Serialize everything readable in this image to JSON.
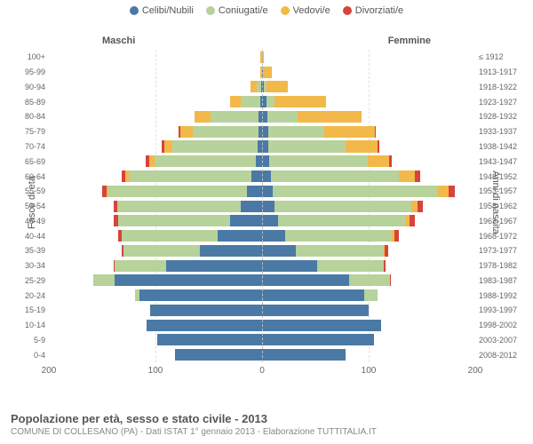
{
  "legend": [
    {
      "label": "Celibi/Nubili",
      "color": "#4a79a6"
    },
    {
      "label": "Coniugati/e",
      "color": "#b7d29a"
    },
    {
      "label": "Vedovi/e",
      "color": "#f3b84a"
    },
    {
      "label": "Divorziati/e",
      "color": "#d6443c"
    }
  ],
  "headers": {
    "male": "Maschi",
    "female": "Femmine"
  },
  "axis_labels": {
    "left": "Fasce di età",
    "right": "Anni di nascita"
  },
  "colors": {
    "single": "#4a79a6",
    "married": "#b7d29a",
    "widowed": "#f3b84a",
    "divorced": "#d6443c",
    "grid": "#e0e0e0",
    "centerline": "#bbbbbb",
    "background": "#ffffff"
  },
  "chart": {
    "type": "population-pyramid",
    "xmax": 200
  },
  "xticks": [
    200,
    100,
    0,
    100,
    200
  ],
  "rows": [
    {
      "age": "100+",
      "birth": "≤ 1912",
      "m": {
        "s": 0,
        "c": 0,
        "w": 2,
        "d": 0
      },
      "f": {
        "s": 0,
        "c": 0,
        "w": 2,
        "d": 0
      }
    },
    {
      "age": "95-99",
      "birth": "1913-1917",
      "m": {
        "s": 0,
        "c": 0,
        "w": 2,
        "d": 0
      },
      "f": {
        "s": 1,
        "c": 0,
        "w": 8,
        "d": 0
      }
    },
    {
      "age": "90-94",
      "birth": "1918-1922",
      "m": {
        "s": 1,
        "c": 4,
        "w": 6,
        "d": 0
      },
      "f": {
        "s": 2,
        "c": 2,
        "w": 20,
        "d": 0
      }
    },
    {
      "age": "85-89",
      "birth": "1923-1927",
      "m": {
        "s": 2,
        "c": 18,
        "w": 10,
        "d": 0
      },
      "f": {
        "s": 4,
        "c": 8,
        "w": 48,
        "d": 0
      }
    },
    {
      "age": "80-84",
      "birth": "1928-1932",
      "m": {
        "s": 3,
        "c": 45,
        "w": 15,
        "d": 0
      },
      "f": {
        "s": 5,
        "c": 28,
        "w": 60,
        "d": 0
      }
    },
    {
      "age": "75-79",
      "birth": "1933-1937",
      "m": {
        "s": 3,
        "c": 62,
        "w": 12,
        "d": 1
      },
      "f": {
        "s": 6,
        "c": 52,
        "w": 48,
        "d": 1
      }
    },
    {
      "age": "70-74",
      "birth": "1938-1942",
      "m": {
        "s": 4,
        "c": 80,
        "w": 8,
        "d": 2
      },
      "f": {
        "s": 6,
        "c": 72,
        "w": 30,
        "d": 2
      }
    },
    {
      "age": "65-69",
      "birth": "1943-1947",
      "m": {
        "s": 6,
        "c": 95,
        "w": 5,
        "d": 3
      },
      "f": {
        "s": 7,
        "c": 92,
        "w": 20,
        "d": 3
      }
    },
    {
      "age": "60-64",
      "birth": "1948-1952",
      "m": {
        "s": 10,
        "c": 115,
        "w": 3,
        "d": 4
      },
      "f": {
        "s": 8,
        "c": 120,
        "w": 15,
        "d": 5
      }
    },
    {
      "age": "55-59",
      "birth": "1953-1957",
      "m": {
        "s": 14,
        "c": 130,
        "w": 2,
        "d": 4
      },
      "f": {
        "s": 10,
        "c": 155,
        "w": 10,
        "d": 6
      }
    },
    {
      "age": "50-54",
      "birth": "1958-1962",
      "m": {
        "s": 20,
        "c": 115,
        "w": 1,
        "d": 3
      },
      "f": {
        "s": 12,
        "c": 128,
        "w": 6,
        "d": 5
      }
    },
    {
      "age": "45-49",
      "birth": "1963-1967",
      "m": {
        "s": 30,
        "c": 105,
        "w": 0,
        "d": 4
      },
      "f": {
        "s": 15,
        "c": 120,
        "w": 3,
        "d": 5
      }
    },
    {
      "age": "40-44",
      "birth": "1968-1972",
      "m": {
        "s": 42,
        "c": 90,
        "w": 0,
        "d": 3
      },
      "f": {
        "s": 22,
        "c": 100,
        "w": 2,
        "d": 4
      }
    },
    {
      "age": "35-39",
      "birth": "1973-1977",
      "m": {
        "s": 58,
        "c": 72,
        "w": 0,
        "d": 2
      },
      "f": {
        "s": 32,
        "c": 82,
        "w": 1,
        "d": 3
      }
    },
    {
      "age": "30-34",
      "birth": "1978-1982",
      "m": {
        "s": 90,
        "c": 48,
        "w": 0,
        "d": 1
      },
      "f": {
        "s": 52,
        "c": 62,
        "w": 0,
        "d": 2
      }
    },
    {
      "age": "25-29",
      "birth": "1983-1987",
      "m": {
        "s": 138,
        "c": 20,
        "w": 0,
        "d": 0
      },
      "f": {
        "s": 82,
        "c": 38,
        "w": 0,
        "d": 1
      }
    },
    {
      "age": "20-24",
      "birth": "1988-1992",
      "m": {
        "s": 115,
        "c": 4,
        "w": 0,
        "d": 0
      },
      "f": {
        "s": 96,
        "c": 12,
        "w": 0,
        "d": 0
      }
    },
    {
      "age": "15-19",
      "birth": "1993-1997",
      "m": {
        "s": 105,
        "c": 0,
        "w": 0,
        "d": 0
      },
      "f": {
        "s": 100,
        "c": 0,
        "w": 0,
        "d": 0
      }
    },
    {
      "age": "10-14",
      "birth": "1998-2002",
      "m": {
        "s": 108,
        "c": 0,
        "w": 0,
        "d": 0
      },
      "f": {
        "s": 112,
        "c": 0,
        "w": 0,
        "d": 0
      }
    },
    {
      "age": "5-9",
      "birth": "2003-2007",
      "m": {
        "s": 98,
        "c": 0,
        "w": 0,
        "d": 0
      },
      "f": {
        "s": 105,
        "c": 0,
        "w": 0,
        "d": 0
      }
    },
    {
      "age": "0-4",
      "birth": "2008-2012",
      "m": {
        "s": 82,
        "c": 0,
        "w": 0,
        "d": 0
      },
      "f": {
        "s": 78,
        "c": 0,
        "w": 0,
        "d": 0
      }
    }
  ],
  "footer": {
    "title": "Popolazione per età, sesso e stato civile - 2013",
    "subtitle": "COMUNE DI COLLESANO (PA) - Dati ISTAT 1° gennaio 2013 - Elaborazione TUTTITALIA.IT"
  }
}
